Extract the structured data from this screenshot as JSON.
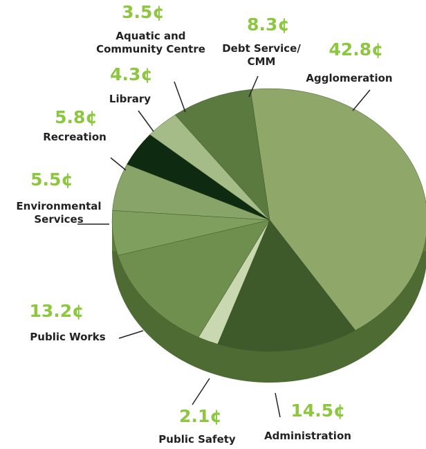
{
  "chart_data": {
    "type": "pie",
    "categories": [
      "Agglomeration",
      "Administration",
      "Public Safety",
      "Public Works",
      "Environmental\nServices",
      "Recreation",
      "Library",
      "Aquatic and\nCommunity Centre",
      "Debt Service/\nCMM"
    ],
    "values": [
      42.8,
      14.5,
      2.1,
      13.2,
      5.5,
      5.8,
      4.3,
      3.5,
      8.3
    ],
    "value_labels": [
      "42.8¢",
      "14.5¢",
      "2.1¢",
      "13.2¢",
      "5.5¢",
      "5.8¢",
      "4.3¢",
      "3.5¢",
      "8.3¢"
    ],
    "colors": [
      "#8fa86a",
      "#3f5a2a",
      "#c9d8b0",
      "#6f8f4f",
      "#7f9f5f",
      "#88a468",
      "#0e2a10",
      "#a5bb88",
      "#5a7a40"
    ]
  }
}
